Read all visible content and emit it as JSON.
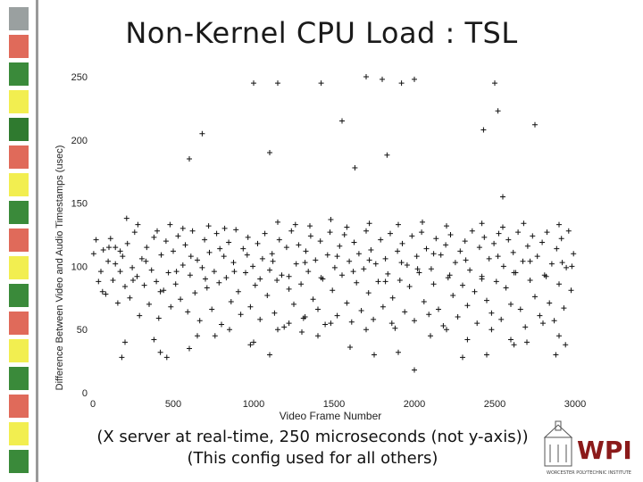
{
  "slide": {
    "title": "Non-Kernel CPU Load : TSL",
    "caption_line1": "(X server at real-time, 250 microseconds (not y-axis))",
    "caption_line2": "(This config used for all others)",
    "logo_text": "WPI",
    "logo_subtext": "WORCESTER POLYTECHNIC INSTITUTE"
  },
  "sidebar": {
    "colors": [
      "#9aa0a0",
      "#e06a5a",
      "#3a8a3a",
      "#f2ee50",
      "#2f7a2f",
      "#e06a5a",
      "#f2ee50",
      "#3a8a3a",
      "#e06a5a",
      "#f2ee50",
      "#3a8a3a",
      "#e06a5a",
      "#f2ee50",
      "#3a8a3a",
      "#e06a5a",
      "#f2ee50",
      "#3a8a3a"
    ]
  },
  "chart_data": {
    "type": "scatter",
    "marker": "plus",
    "xlabel": "Video Frame Number",
    "ylabel": "Difference Between Video and Audio Timestamps (usec)",
    "xlim": [
      0,
      3000
    ],
    "ylim": [
      0,
      250
    ],
    "xticks": [
      0,
      500,
      1000,
      1500,
      2000,
      2500,
      3000
    ],
    "yticks": [
      0,
      50,
      100,
      150,
      200,
      250
    ],
    "series": [
      {
        "points_sampled": [
          [
            5,
            110
          ],
          [
            20,
            121
          ],
          [
            35,
            88
          ],
          [
            50,
            96
          ],
          [
            65,
            113
          ],
          [
            80,
            78
          ],
          [
            95,
            104
          ],
          [
            110,
            122
          ],
          [
            125,
            89
          ],
          [
            140,
            102
          ],
          [
            155,
            71
          ],
          [
            170,
            96
          ],
          [
            185,
            108
          ],
          [
            200,
            84
          ],
          [
            215,
            118
          ],
          [
            230,
            75
          ],
          [
            245,
            99
          ],
          [
            260,
            127
          ],
          [
            275,
            92
          ],
          [
            290,
            61
          ],
          [
            305,
            106
          ],
          [
            320,
            85
          ],
          [
            335,
            115
          ],
          [
            350,
            70
          ],
          [
            365,
            97
          ],
          [
            380,
            123
          ],
          [
            395,
            88
          ],
          [
            410,
            59
          ],
          [
            425,
            109
          ],
          [
            440,
            81
          ],
          [
            455,
            120
          ],
          [
            470,
            95
          ],
          [
            485,
            68
          ],
          [
            500,
            112
          ],
          [
            515,
            86
          ],
          [
            530,
            124
          ],
          [
            545,
            74
          ],
          [
            560,
            101
          ],
          [
            575,
            117
          ],
          [
            590,
            64
          ],
          [
            605,
            93
          ],
          [
            620,
            128
          ],
          [
            635,
            79
          ],
          [
            650,
            105
          ],
          [
            665,
            57
          ],
          [
            680,
            99
          ],
          [
            695,
            121
          ],
          [
            710,
            83
          ],
          [
            725,
            111
          ],
          [
            740,
            66
          ],
          [
            755,
            96
          ],
          [
            770,
            126
          ],
          [
            785,
            87
          ],
          [
            800,
            54
          ],
          [
            815,
            108
          ],
          [
            830,
            91
          ],
          [
            845,
            119
          ],
          [
            860,
            72
          ],
          [
            875,
            103
          ],
          [
            890,
            129
          ],
          [
            905,
            80
          ],
          [
            920,
            62
          ],
          [
            935,
            114
          ],
          [
            950,
            95
          ],
          [
            965,
            123
          ],
          [
            980,
            68
          ],
          [
            995,
            100
          ],
          [
            1010,
            85
          ],
          [
            1025,
            118
          ],
          [
            1040,
            58
          ],
          [
            1055,
            106
          ],
          [
            1070,
            126
          ],
          [
            1085,
            77
          ],
          [
            1100,
            97
          ],
          [
            1115,
            110
          ],
          [
            1130,
            63
          ],
          [
            1145,
            89
          ],
          [
            1160,
            121
          ],
          [
            1175,
            93
          ],
          [
            1190,
            52
          ],
          [
            1205,
            115
          ],
          [
            1220,
            82
          ],
          [
            1235,
            128
          ],
          [
            1250,
            70
          ],
          [
            1265,
            102
          ],
          [
            1280,
            117
          ],
          [
            1295,
            86
          ],
          [
            1310,
            59
          ],
          [
            1325,
            112
          ],
          [
            1340,
            96
          ],
          [
            1355,
            124
          ],
          [
            1370,
            74
          ],
          [
            1385,
            105
          ],
          [
            1400,
            66
          ],
          [
            1415,
            120
          ],
          [
            1430,
            90
          ],
          [
            1445,
            54
          ],
          [
            1460,
            109
          ],
          [
            1475,
            127
          ],
          [
            1490,
            81
          ],
          [
            1505,
            99
          ],
          [
            1520,
            61
          ],
          [
            1535,
            116
          ],
          [
            1550,
            93
          ],
          [
            1565,
            125
          ],
          [
            1580,
            71
          ],
          [
            1595,
            104
          ],
          [
            1610,
            56
          ],
          [
            1625,
            119
          ],
          [
            1640,
            87
          ],
          [
            1655,
            110
          ],
          [
            1670,
            65
          ],
          [
            1685,
            98
          ],
          [
            1700,
            128
          ],
          [
            1715,
            79
          ],
          [
            1730,
            113
          ],
          [
            1745,
            58
          ],
          [
            1760,
            102
          ],
          [
            1775,
            88
          ],
          [
            1790,
            121
          ],
          [
            1805,
            68
          ],
          [
            1820,
            106
          ],
          [
            1835,
            94
          ],
          [
            1850,
            126
          ],
          [
            1865,
            75
          ],
          [
            1880,
            51
          ],
          [
            1895,
            112
          ],
          [
            1910,
            89
          ],
          [
            1925,
            118
          ],
          [
            1940,
            64
          ],
          [
            1955,
            101
          ],
          [
            1970,
            84
          ],
          [
            1985,
            124
          ],
          [
            2000,
            57
          ],
          [
            2015,
            108
          ],
          [
            2030,
            95
          ],
          [
            2045,
            127
          ],
          [
            2060,
            72
          ],
          [
            2075,
            114
          ],
          [
            2090,
            62
          ],
          [
            2105,
            98
          ],
          [
            2120,
            86
          ],
          [
            2135,
            122
          ],
          [
            2150,
            66
          ],
          [
            2165,
            109
          ],
          [
            2180,
            53
          ],
          [
            2195,
            117
          ],
          [
            2210,
            91
          ],
          [
            2225,
            125
          ],
          [
            2240,
            77
          ],
          [
            2255,
            103
          ],
          [
            2270,
            60
          ],
          [
            2285,
            112
          ],
          [
            2300,
            85
          ],
          [
            2315,
            120
          ],
          [
            2330,
            69
          ],
          [
            2345,
            97
          ],
          [
            2360,
            128
          ],
          [
            2375,
            80
          ],
          [
            2390,
            55
          ],
          [
            2405,
            115
          ],
          [
            2420,
            92
          ],
          [
            2435,
            123
          ],
          [
            2450,
            73
          ],
          [
            2465,
            106
          ],
          [
            2480,
            63
          ],
          [
            2495,
            118
          ],
          [
            2510,
            88
          ],
          [
            2525,
            126
          ],
          [
            2540,
            58
          ],
          [
            2555,
            100
          ],
          [
            2570,
            83
          ],
          [
            2585,
            121
          ],
          [
            2600,
            70
          ],
          [
            2615,
            111
          ],
          [
            2630,
            95
          ],
          [
            2645,
            127
          ],
          [
            2660,
            66
          ],
          [
            2675,
            104
          ],
          [
            2690,
            52
          ],
          [
            2705,
            116
          ],
          [
            2720,
            89
          ],
          [
            2735,
            124
          ],
          [
            2750,
            76
          ],
          [
            2765,
            108
          ],
          [
            2780,
            61
          ],
          [
            2795,
            119
          ],
          [
            2810,
            93
          ],
          [
            2825,
            127
          ],
          [
            2840,
            71
          ],
          [
            2855,
            102
          ],
          [
            2870,
            57
          ],
          [
            2885,
            114
          ],
          [
            2900,
            86
          ],
          [
            2915,
            122
          ],
          [
            2930,
            67
          ],
          [
            2945,
            99
          ],
          [
            2960,
            128
          ],
          [
            2975,
            81
          ],
          [
            2990,
            110
          ],
          [
            60,
            80
          ],
          [
            140,
            115
          ],
          [
            250,
            89
          ],
          [
            330,
            104
          ],
          [
            420,
            80
          ],
          [
            520,
            96
          ],
          [
            610,
            108
          ],
          [
            700,
            90
          ],
          [
            790,
            114
          ],
          [
            880,
            96
          ],
          [
            960,
            109
          ],
          [
            1040,
            90
          ],
          [
            1120,
            104
          ],
          [
            1220,
            92
          ],
          [
            1320,
            103
          ],
          [
            1420,
            91
          ],
          [
            1520,
            108
          ],
          [
            1620,
            96
          ],
          [
            1720,
            105
          ],
          [
            1820,
            88
          ],
          [
            1920,
            103
          ],
          [
            2020,
            98
          ],
          [
            2120,
            110
          ],
          [
            2220,
            93
          ],
          [
            2320,
            105
          ],
          [
            2420,
            90
          ],
          [
            2520,
            108
          ],
          [
            2620,
            95
          ],
          [
            2720,
            104
          ],
          [
            2820,
            92
          ],
          [
            2920,
            103
          ],
          [
            2980,
            100
          ],
          [
            180,
            28
          ],
          [
            420,
            32
          ],
          [
            650,
            45
          ],
          [
            1100,
            30
          ],
          [
            1150,
            50
          ],
          [
            1400,
            45
          ],
          [
            1750,
            30
          ],
          [
            1900,
            32
          ],
          [
            2300,
            28
          ],
          [
            2450,
            30
          ],
          [
            200,
            40
          ],
          [
            380,
            42
          ],
          [
            980,
            38
          ],
          [
            1300,
            48
          ],
          [
            2600,
            42
          ],
          [
            2700,
            40
          ],
          [
            2900,
            45
          ],
          [
            600,
            185
          ],
          [
            680,
            205
          ],
          [
            1000,
            245
          ],
          [
            1100,
            190
          ],
          [
            1420,
            245
          ],
          [
            1550,
            215
          ],
          [
            1630,
            178
          ],
          [
            1800,
            248
          ],
          [
            1830,
            188
          ],
          [
            1920,
            245
          ],
          [
            2000,
            248
          ],
          [
            2500,
            245
          ],
          [
            2520,
            223
          ],
          [
            2750,
            212
          ],
          [
            2430,
            208
          ],
          [
            2550,
            155
          ],
          [
            1700,
            250
          ],
          [
            1150,
            245
          ],
          [
            1000,
            40
          ],
          [
            1220,
            55
          ],
          [
            1600,
            36
          ],
          [
            2000,
            18
          ],
          [
            2200,
            50
          ],
          [
            2330,
            42
          ],
          [
            2480,
            50
          ],
          [
            2620,
            38
          ],
          [
            2940,
            38
          ],
          [
            2880,
            30
          ],
          [
            600,
            35
          ],
          [
            460,
            28
          ],
          [
            760,
            45
          ],
          [
            850,
            50
          ],
          [
            1320,
            60
          ],
          [
            1480,
            55
          ],
          [
            1700,
            50
          ],
          [
            1860,
            55
          ],
          [
            2100,
            45
          ],
          [
            2800,
            55
          ],
          [
            100,
            115
          ],
          [
            170,
            112
          ],
          [
            210,
            138
          ],
          [
            280,
            133
          ],
          [
            400,
            128
          ],
          [
            480,
            133
          ],
          [
            560,
            130
          ],
          [
            720,
            132
          ],
          [
            820,
            130
          ],
          [
            1150,
            135
          ],
          [
            1260,
            133
          ],
          [
            1350,
            132
          ],
          [
            1480,
            137
          ],
          [
            1580,
            131
          ],
          [
            1720,
            134
          ],
          [
            1900,
            133
          ],
          [
            2050,
            135
          ],
          [
            2200,
            132
          ],
          [
            2420,
            134
          ],
          [
            2550,
            131
          ],
          [
            2680,
            134
          ],
          [
            2900,
            133
          ]
        ]
      }
    ]
  }
}
